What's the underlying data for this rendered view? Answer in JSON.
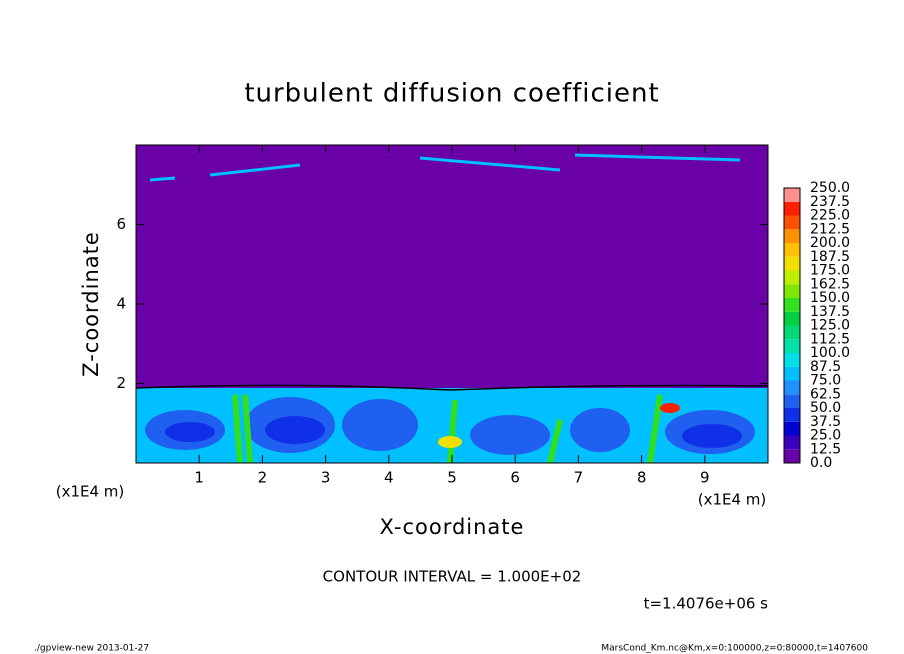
{
  "chart_data": {
    "type": "contour",
    "title": "turbulent diffusion coefficient",
    "x_label": "X-coordinate",
    "y_label": "Z-coordinate",
    "x_unit": "(x1E4 m)",
    "y_unit": "(x1E4 m)",
    "xlim": [
      0,
      10
    ],
    "ylim": [
      0,
      8
    ],
    "xticks": [
      1,
      2,
      3,
      4,
      5,
      6,
      7,
      8,
      9
    ],
    "yticks": [
      2,
      4,
      6
    ],
    "colorbar": {
      "levels": [
        {
          "value": 0,
          "label": "0.0"
        },
        12.5,
        {
          "value": 25,
          "label": "25.0"
        },
        37.5,
        {
          "value": 50,
          "label": "50.0"
        },
        62.5,
        {
          "value": 75,
          "label": "75.0"
        },
        87.5,
        {
          "value": 100,
          "label": "100.0"
        },
        112.5,
        {
          "value": 125,
          "label": "125.0"
        },
        137.5,
        {
          "value": 150,
          "label": "150.0"
        },
        162.5,
        {
          "value": 175,
          "label": "175.0"
        },
        187.5,
        {
          "value": 200,
          "label": "200.0"
        },
        212.5,
        {
          "value": 225,
          "label": "225.0"
        },
        237.5,
        {
          "value": 250,
          "label": "250.0"
        }
      ],
      "colors": [
        "#6a00a8",
        "#3a00c0",
        "#0000d0",
        "#1030e8",
        "#2060f0",
        "#2090ff",
        "#00c0ff",
        "#00e0e8",
        "#00e0a8",
        "#00d878",
        "#00d040",
        "#30e020",
        "#80e800",
        "#c0f000",
        "#f0e000",
        "#ffc000",
        "#ff9000",
        "#ff5000",
        "#ff2000",
        "#ff9090"
      ]
    },
    "contour_interval": "CONTOUR INTERVAL = 1.000E+02",
    "time": "t=1.4076e+06 s",
    "footer_left": "./gpview-new  2013-01-27",
    "footer_right": "MarsCond_Km.nc@Km,x=0:100000,z=0:80000,t=1407600"
  }
}
